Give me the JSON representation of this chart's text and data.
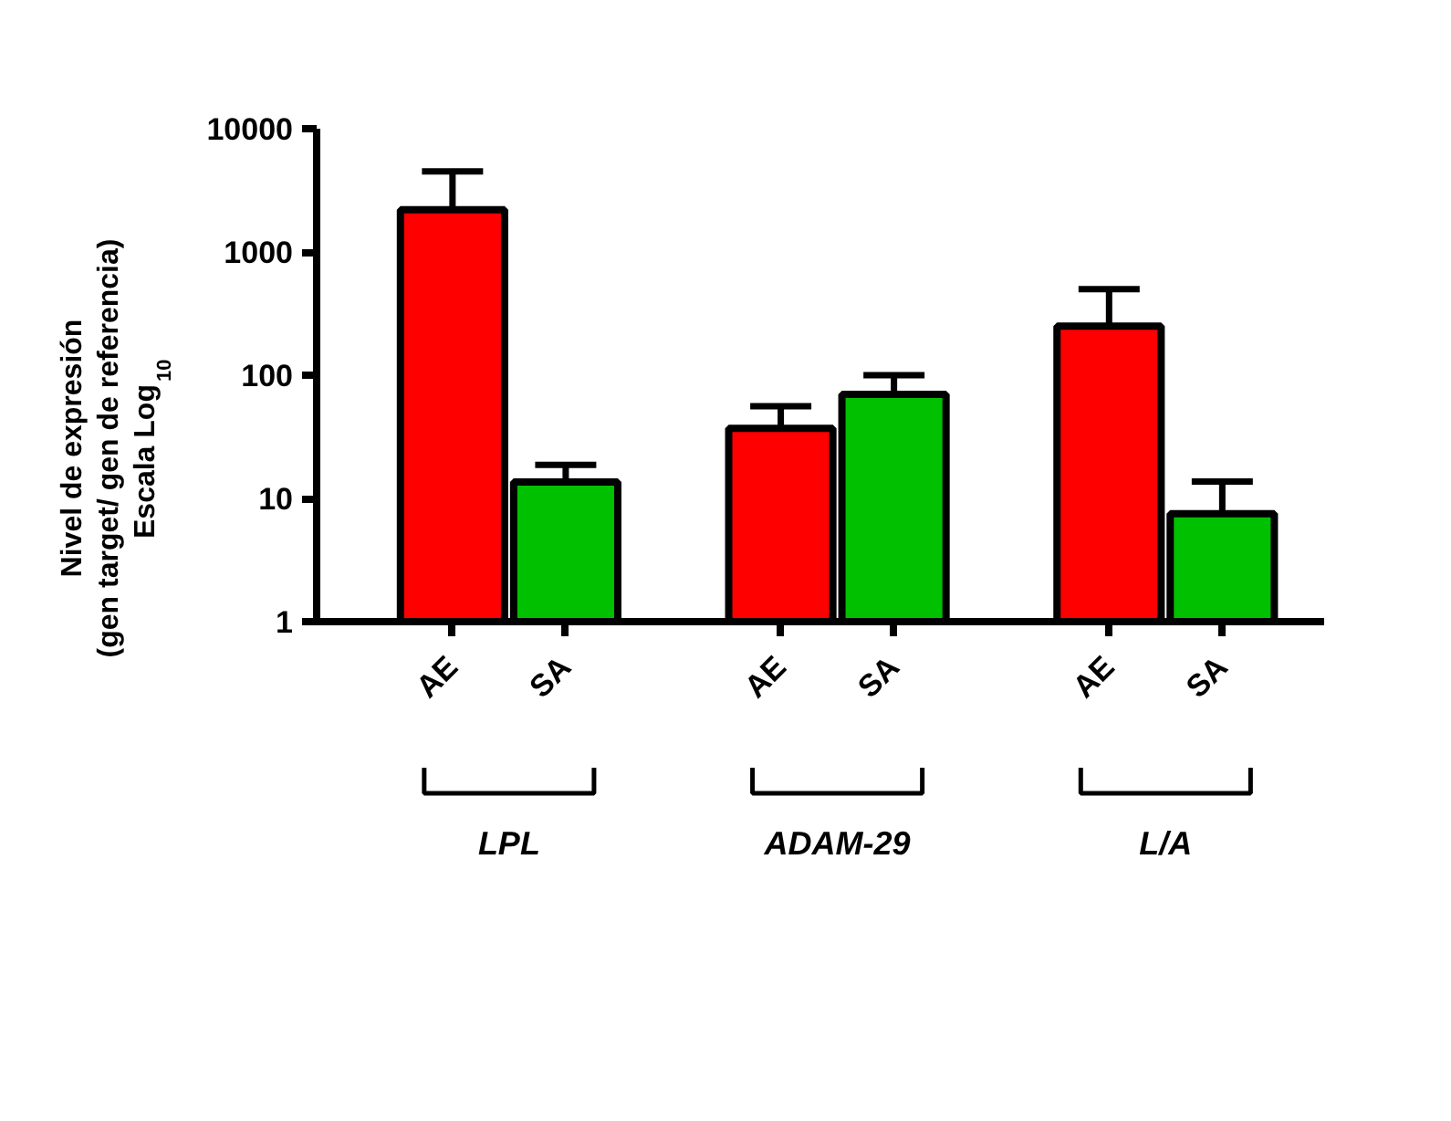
{
  "chart_data": {
    "type": "bar",
    "ylabel": "Nivel de expresión\n(gen target/ gen de referencia)\nEscala Log$_{10}$",
    "categories": [
      "AE",
      "SA",
      "AE",
      "SA",
      "AE",
      "SA"
    ],
    "values": [
      2200,
      13.6,
      37,
      70,
      250,
      7.5
    ],
    "errors": [
      [
        2200,
        4500
      ],
      [
        13.6,
        18.7
      ],
      [
        37,
        56
      ],
      [
        70,
        100
      ],
      [
        250,
        500
      ],
      [
        7.5,
        13.7
      ]
    ],
    "colors": [
      "#ff0000",
      "#00c000",
      "#ff0000",
      "#00c000",
      "#ff0000",
      "#00c000"
    ],
    "log": true,
    "ylim": [
      1,
      10000
    ],
    "yticks": [
      1,
      10,
      100,
      1000,
      10000
    ],
    "annotations": [
      "LPL",
      "ADAM-29",
      "L/A"
    ],
    "grid": false
  }
}
